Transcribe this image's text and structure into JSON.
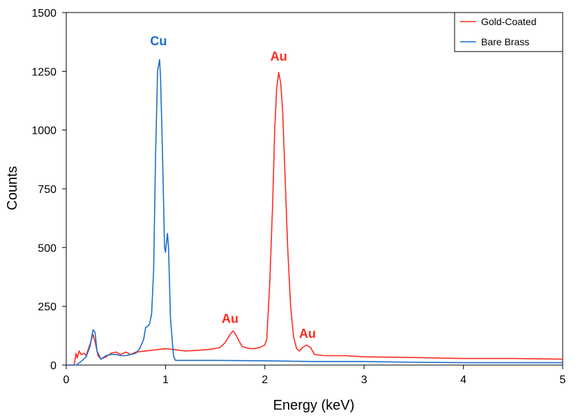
{
  "chart_data": {
    "type": "line",
    "title": "",
    "xlabel": "Energy (keV)",
    "ylabel": "Counts",
    "xlim": [
      0,
      5
    ],
    "ylim": [
      0,
      1500
    ],
    "xticks": [
      0,
      1,
      2,
      3,
      4,
      5
    ],
    "yticks": [
      0,
      250,
      500,
      750,
      1000,
      1250,
      1500
    ],
    "grid": false,
    "legend_position": "top-right",
    "series": [
      {
        "name": "Gold-Coated",
        "color": "#ff2a1f",
        "points": [
          [
            0.0,
            0
          ],
          [
            0.08,
            0
          ],
          [
            0.1,
            50
          ],
          [
            0.11,
            30
          ],
          [
            0.13,
            60
          ],
          [
            0.15,
            45
          ],
          [
            0.18,
            50
          ],
          [
            0.2,
            40
          ],
          [
            0.24,
            90
          ],
          [
            0.27,
            130
          ],
          [
            0.29,
            100
          ],
          [
            0.32,
            40
          ],
          [
            0.35,
            25
          ],
          [
            0.4,
            35
          ],
          [
            0.45,
            50
          ],
          [
            0.5,
            55
          ],
          [
            0.55,
            45
          ],
          [
            0.6,
            55
          ],
          [
            0.65,
            45
          ],
          [
            0.7,
            55
          ],
          [
            0.8,
            60
          ],
          [
            0.9,
            65
          ],
          [
            1.0,
            70
          ],
          [
            1.1,
            65
          ],
          [
            1.2,
            60
          ],
          [
            1.3,
            62
          ],
          [
            1.4,
            65
          ],
          [
            1.5,
            70
          ],
          [
            1.55,
            75
          ],
          [
            1.6,
            95
          ],
          [
            1.65,
            130
          ],
          [
            1.68,
            145
          ],
          [
            1.7,
            135
          ],
          [
            1.73,
            110
          ],
          [
            1.77,
            80
          ],
          [
            1.8,
            75
          ],
          [
            1.85,
            70
          ],
          [
            1.9,
            70
          ],
          [
            1.95,
            75
          ],
          [
            2.0,
            85
          ],
          [
            2.02,
            110
          ],
          [
            2.05,
            350
          ],
          [
            2.08,
            700
          ],
          [
            2.1,
            1000
          ],
          [
            2.12,
            1180
          ],
          [
            2.14,
            1245
          ],
          [
            2.16,
            1200
          ],
          [
            2.18,
            1080
          ],
          [
            2.2,
            850
          ],
          [
            2.23,
            500
          ],
          [
            2.26,
            250
          ],
          [
            2.29,
            120
          ],
          [
            2.32,
            70
          ],
          [
            2.35,
            60
          ],
          [
            2.38,
            75
          ],
          [
            2.42,
            85
          ],
          [
            2.46,
            75
          ],
          [
            2.5,
            45
          ],
          [
            2.6,
            40
          ],
          [
            2.8,
            40
          ],
          [
            3.0,
            35
          ],
          [
            3.5,
            32
          ],
          [
            4.0,
            28
          ],
          [
            4.5,
            28
          ],
          [
            5.0,
            25
          ]
        ]
      },
      {
        "name": "Bare Brass",
        "color": "#1a6ec9",
        "points": [
          [
            0.0,
            0
          ],
          [
            0.1,
            0
          ],
          [
            0.15,
            15
          ],
          [
            0.2,
            35
          ],
          [
            0.24,
            80
          ],
          [
            0.27,
            150
          ],
          [
            0.29,
            140
          ],
          [
            0.31,
            60
          ],
          [
            0.35,
            25
          ],
          [
            0.4,
            40
          ],
          [
            0.45,
            45
          ],
          [
            0.5,
            45
          ],
          [
            0.55,
            40
          ],
          [
            0.6,
            40
          ],
          [
            0.65,
            45
          ],
          [
            0.7,
            50
          ],
          [
            0.74,
            70
          ],
          [
            0.78,
            110
          ],
          [
            0.8,
            160
          ],
          [
            0.82,
            165
          ],
          [
            0.84,
            175
          ],
          [
            0.86,
            220
          ],
          [
            0.88,
            400
          ],
          [
            0.9,
            900
          ],
          [
            0.92,
            1250
          ],
          [
            0.94,
            1300
          ],
          [
            0.95,
            1220
          ],
          [
            0.97,
            900
          ],
          [
            0.99,
            500
          ],
          [
            1.0,
            480
          ],
          [
            1.02,
            560
          ],
          [
            1.03,
            500
          ],
          [
            1.05,
            200
          ],
          [
            1.08,
            40
          ],
          [
            1.1,
            20
          ],
          [
            1.5,
            20
          ],
          [
            2.0,
            18
          ],
          [
            2.5,
            15
          ],
          [
            3.0,
            15
          ],
          [
            3.5,
            12
          ],
          [
            4.0,
            10
          ],
          [
            4.5,
            10
          ],
          [
            5.0,
            10
          ]
        ]
      }
    ],
    "annotations": [
      {
        "text": "Cu",
        "x": 0.93,
        "y": 1360,
        "color": "#1a6ec9"
      },
      {
        "text": "Au",
        "x": 2.14,
        "y": 1295,
        "color": "#ff2a1f"
      },
      {
        "text": "Au",
        "x": 1.65,
        "y": 180,
        "color": "#ff2a1f"
      },
      {
        "text": "Au",
        "x": 2.43,
        "y": 115,
        "color": "#ff2a1f"
      }
    ]
  }
}
